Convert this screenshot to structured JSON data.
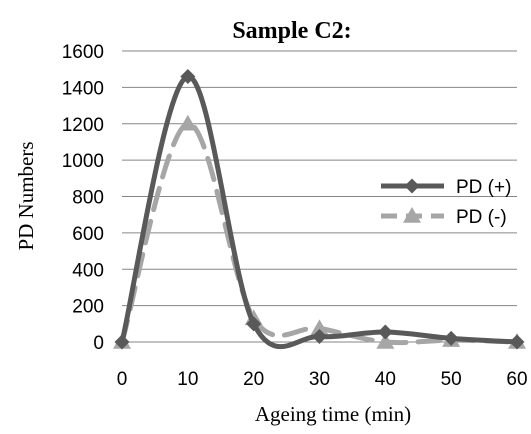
{
  "chart_data": {
    "type": "line",
    "title": "Sample C2:",
    "xlabel": "Ageing time (min)",
    "ylabel": "PD Numbers",
    "x": [
      0,
      10,
      20,
      30,
      40,
      50,
      60
    ],
    "xlim": [
      0,
      60
    ],
    "ylim": [
      0,
      1600
    ],
    "xticks": [
      "0",
      "10",
      "20",
      "30",
      "40",
      "50",
      "60"
    ],
    "yticks": [
      "0",
      "200",
      "400",
      "600",
      "800",
      "1000",
      "1200",
      "1400",
      "1600"
    ],
    "grid": "horizontal",
    "legend_position": "right",
    "series": [
      {
        "name": "PD (+)",
        "values": [
          0,
          1460,
          100,
          30,
          55,
          20,
          0
        ],
        "color": "#595959",
        "marker": "diamond",
        "dash": "solid"
      },
      {
        "name": "PD (-)",
        "values": [
          0,
          1200,
          130,
          75,
          0,
          10,
          0
        ],
        "color": "#a6a6a6",
        "marker": "triangle",
        "dash": "dashed"
      }
    ]
  }
}
